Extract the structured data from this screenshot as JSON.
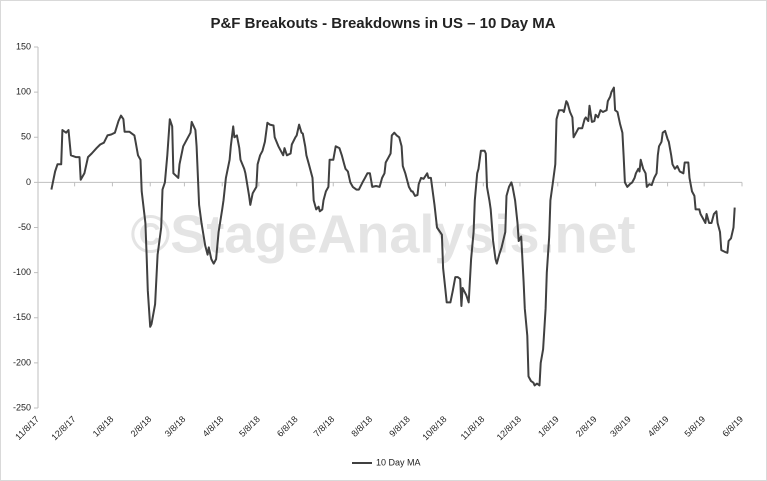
{
  "chart_data": {
    "type": "line",
    "title": "P&F Breakouts - Breakdowns in US – 10 Day MA",
    "watermark": "©StageAnalysis.net",
    "x": [
      "11/19/17",
      "11/22/17",
      "11/24/17",
      "11/27/17",
      "11/28/17",
      "12/1/17",
      "12/3/17",
      "12/5/17",
      "12/9/17",
      "12/12/17",
      "12/13/17",
      "12/16/17",
      "12/19/17",
      "12/22/17",
      "12/26/17",
      "12/29/17",
      "1/1/18",
      "1/4/18",
      "1/7/18",
      "1/10/18",
      "1/13/18",
      "1/15/18",
      "1/17/18",
      "1/18/18",
      "1/22/18",
      "1/26/18",
      "1/27/18",
      "1/29/18",
      "1/31/18",
      "2/1/18",
      "2/4/18",
      "2/5/18",
      "2/6/18",
      "2/8/18",
      "2/9/18",
      "2/12/18",
      "2/14/18",
      "2/17/18",
      "2/18/18",
      "2/20/18",
      "2/22/18",
      "2/24/18",
      "2/26/18",
      "2/27/18",
      "3/3/18",
      "3/4/18",
      "3/7/18",
      "3/9/18",
      "3/13/18",
      "3/14/18",
      "3/17/18",
      "3/18/18",
      "3/20/18",
      "3/22/18",
      "3/25/18",
      "3/27/18",
      "3/28/18",
      "3/30/18",
      "4/1/18",
      "4/3/18",
      "4/5/18",
      "4/8/18",
      "4/9/18",
      "4/11/18",
      "4/14/18",
      "4/15/18",
      "4/17/18",
      "4/18/18",
      "4/20/18",
      "4/22/18",
      "4/23/18",
      "4/26/18",
      "4/27/18",
      "4/30/18",
      "5/1/18",
      "5/3/18",
      "5/6/18",
      "5/7/18",
      "5/9/18",
      "5/11/18",
      "5/13/18",
      "5/15/18",
      "5/17/18",
      "5/20/18",
      "5/21/18",
      "5/24/18",
      "5/26/18",
      "5/28/18",
      "5/29/18",
      "5/31/18",
      "6/3/18",
      "6/4/18",
      "6/7/18",
      "6/8/18",
      "6/10/18",
      "6/12/18",
      "6/13/18",
      "6/15/18",
      "6/16/18",
      "6/18/18",
      "6/21/18",
      "6/22/18",
      "6/24/18",
      "6/26/18",
      "6/27/18",
      "6/29/18",
      "6/30/18",
      "7/2/18",
      "7/4/18",
      "7/5/18",
      "7/8/18",
      "7/10/18",
      "7/13/18",
      "7/15/18",
      "7/17/18",
      "7/18/18",
      "7/20/18",
      "7/22/18",
      "7/24/18",
      "7/27/18",
      "7/29/18",
      "8/1/18",
      "8/3/18",
      "8/5/18",
      "8/7/18",
      "8/9/18",
      "8/12/18",
      "8/15/18",
      "8/17/18",
      "8/19/18",
      "8/20/18",
      "8/22/18",
      "8/24/18",
      "8/25/18",
      "8/27/18",
      "8/29/18",
      "8/31/18",
      "9/2/18",
      "9/3/18",
      "9/5/18",
      "9/6/18",
      "9/8/18",
      "9/10/18",
      "9/11/18",
      "9/13/18",
      "9/15/18",
      "9/16/18",
      "9/18/18",
      "9/20/18",
      "9/23/18",
      "9/24/18",
      "9/26/18",
      "9/28/18",
      "9/29/18",
      "10/1/18",
      "10/5/18",
      "10/6/18",
      "10/8/18",
      "10/9/18",
      "10/12/18",
      "10/14/18",
      "10/16/18",
      "10/18/18",
      "10/20/18",
      "10/21/18",
      "10/22/18",
      "10/25/18",
      "10/27/18",
      "10/29/18",
      "10/31/18",
      "11/1/18",
      "11/3/18",
      "11/4/18",
      "11/6/18",
      "11/9/18",
      "11/10/18",
      "11/11/18",
      "11/13/18",
      "11/14/18",
      "11/16/18",
      "11/18/18",
      "11/19/18",
      "11/21/18",
      "11/23/18",
      "11/26/18",
      "11/27/18",
      "11/29/18",
      "12/1/18",
      "12/2/18",
      "12/4/18",
      "12/6/18",
      "12/7/18",
      "12/9/18",
      "12/11/18",
      "12/12/18",
      "12/14/18",
      "12/15/18",
      "12/17/18",
      "12/19/18",
      "12/20/18",
      "12/22/18",
      "12/24/18",
      "12/25/18",
      "12/27/18",
      "12/29/18",
      "12/30/18",
      "1/1/19",
      "1/2/19",
      "1/4/19",
      "1/6/19",
      "1/7/19",
      "1/9/19",
      "1/12/19",
      "1/13/19",
      "1/15/19",
      "1/16/19",
      "1/18/19",
      "1/20/19",
      "1/21/19",
      "1/23/19",
      "1/25/19",
      "1/28/19",
      "1/30/19",
      "1/31/19",
      "2/2/19",
      "2/3/19",
      "2/5/19",
      "2/7/19",
      "2/8/19",
      "2/10/19",
      "2/12/19",
      "2/14/19",
      "2/17/19",
      "2/18/19",
      "2/20/19",
      "2/21/19",
      "2/23/19",
      "2/24/19",
      "2/26/19",
      "2/28/19",
      "3/2/19",
      "3/3/19",
      "3/4/19",
      "3/6/19",
      "3/8/19",
      "3/10/19",
      "3/12/19",
      "3/13/19",
      "3/15/19",
      "3/16/19",
      "3/17/19",
      "3/19/19",
      "3/21/19",
      "3/22/19",
      "3/24/19",
      "3/26/19",
      "3/28/19",
      "3/30/19",
      "3/31/19",
      "4/1/19",
      "4/3/19",
      "4/4/19",
      "4/6/19",
      "4/8/19",
      "4/9/19",
      "4/11/19",
      "4/12/19",
      "4/14/19",
      "4/16/19",
      "4/18/19",
      "4/21/19",
      "4/22/19",
      "4/25/19",
      "4/26/19",
      "4/28/19",
      "4/30/19",
      "5/1/19",
      "5/4/19",
      "5/5/19",
      "5/7/19",
      "5/9/19",
      "5/10/19",
      "5/12/19",
      "5/14/19",
      "5/16/19",
      "5/18/19",
      "5/19/19",
      "5/21/19",
      "5/22/19",
      "5/25/19",
      "5/27/19",
      "5/28/19",
      "5/30/19",
      "6/1/19",
      "6/2/19"
    ],
    "series": [
      {
        "name": "10 Day MA",
        "color": "#404040",
        "values": [
          -8,
          12,
          20,
          20,
          58,
          55,
          58,
          30,
          28,
          28,
          3,
          10,
          28,
          32,
          38,
          42,
          44,
          52,
          53,
          55,
          68,
          74,
          70,
          56,
          56,
          52,
          45,
          30,
          25,
          -10,
          -45,
          -80,
          -120,
          -160,
          -157,
          -135,
          -80,
          -50,
          -8,
          0,
          30,
          70,
          62,
          10,
          5,
          20,
          40,
          45,
          55,
          67,
          58,
          40,
          -25,
          -45,
          -70,
          -80,
          -72,
          -85,
          -90,
          -85,
          -55,
          -30,
          -20,
          5,
          25,
          40,
          62,
          50,
          52,
          38,
          25,
          15,
          10,
          -15,
          -25,
          -12,
          -5,
          20,
          30,
          35,
          45,
          66,
          64,
          63,
          50,
          40,
          35,
          30,
          38,
          30,
          32,
          42,
          50,
          52,
          64,
          55,
          54,
          40,
          30,
          20,
          5,
          -20,
          -30,
          -27,
          -32,
          -30,
          -20,
          -10,
          -5,
          25,
          25,
          40,
          38,
          30,
          20,
          15,
          12,
          0,
          -5,
          -8,
          -8,
          0,
          5,
          10,
          10,
          -5,
          -4,
          -5,
          5,
          10,
          22,
          27,
          32,
          52,
          55,
          52,
          50,
          40,
          18,
          10,
          5,
          -5,
          -10,
          -10,
          -15,
          -14,
          -2,
          5,
          4,
          10,
          5,
          5,
          -15,
          -25,
          -50,
          -58,
          -95,
          -120,
          -133,
          -133,
          -120,
          -105,
          -105,
          -107,
          -137,
          -117,
          -125,
          -133,
          -85,
          -55,
          -20,
          10,
          15,
          35,
          35,
          32,
          -5,
          -20,
          -30,
          -65,
          -85,
          -90,
          -80,
          -72,
          -55,
          -15,
          -5,
          0,
          -5,
          -20,
          -45,
          -65,
          -60,
          -110,
          -140,
          -170,
          -215,
          -220,
          -222,
          -225,
          -223,
          -225,
          -200,
          -185,
          -140,
          -100,
          -60,
          -20,
          0,
          20,
          70,
          80,
          80,
          78,
          90,
          88,
          78,
          72,
          50,
          55,
          60,
          60,
          70,
          72,
          68,
          85,
          67,
          68,
          75,
          72,
          80,
          78,
          80,
          90,
          95,
          100,
          105,
          80,
          78,
          65,
          55,
          30,
          0,
          -5,
          -2,
          0,
          5,
          10,
          15,
          12,
          25,
          15,
          10,
          -5,
          -2,
          -3,
          5,
          10,
          30,
          40,
          45,
          55,
          57,
          48,
          45,
          30,
          20,
          15,
          18,
          12,
          10,
          22,
          22,
          5,
          -10,
          -15,
          -30,
          -30,
          -35,
          -40,
          -45,
          -35,
          -45,
          -45,
          -35,
          -32,
          -45,
          -55,
          -75,
          -77,
          -78,
          -65,
          -62,
          -50,
          -28
        ]
      }
    ],
    "xlim": [
      "11/8/17",
      "6/8/19"
    ],
    "xticks": [
      "11/8/17",
      "12/8/17",
      "1/8/18",
      "2/8/18",
      "3/8/18",
      "4/8/18",
      "5/8/18",
      "6/8/18",
      "7/8/18",
      "8/8/18",
      "9/8/18",
      "10/8/18",
      "11/8/18",
      "12/8/18",
      "1/8/19",
      "2/8/19",
      "3/8/19",
      "4/8/19",
      "5/8/19",
      "6/8/19"
    ],
    "ylim": [
      -250,
      150
    ],
    "yticks": [
      -250,
      -200,
      -150,
      -100,
      -50,
      0,
      50,
      100,
      150
    ],
    "grid": false
  }
}
